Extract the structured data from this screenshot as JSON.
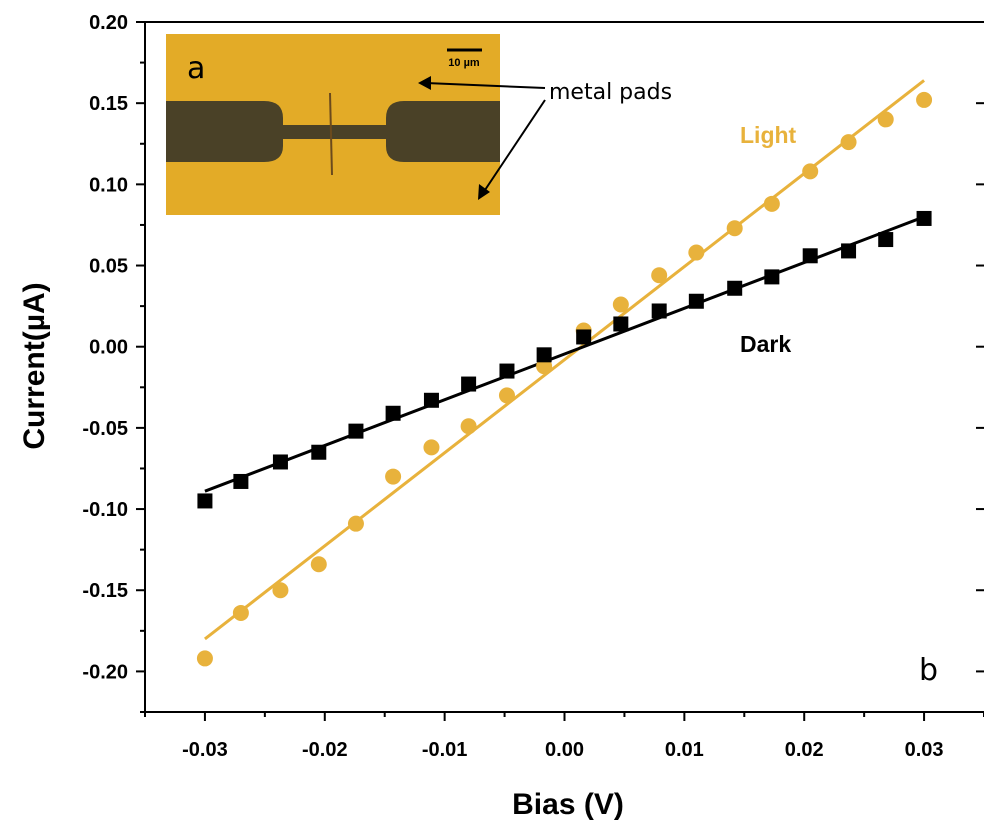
{
  "colors": {
    "light": "#e8b23c",
    "dark": "#000000",
    "inset_background": "#e3ab27",
    "inset_pad": "#4a4127"
  },
  "inset": {
    "panel_label": "a",
    "scale_bar_label": "10 µm",
    "annotation": "metal pads"
  },
  "panel_label": "b",
  "chart_data": {
    "type": "scatter",
    "xlabel": "Bias (V)",
    "ylabel": "Current(µA)",
    "xlim": [
      -0.035,
      0.035
    ],
    "ylim": [
      -0.225,
      0.2
    ],
    "x_ticks": [
      -0.03,
      -0.02,
      -0.01,
      0.0,
      0.01,
      0.02,
      0.03
    ],
    "x_tick_labels": [
      "-0.03",
      "-0.02",
      "-0.01",
      "0.00",
      "0.01",
      "0.02",
      "0.03"
    ],
    "y_ticks": [
      -0.2,
      -0.15,
      -0.1,
      -0.05,
      0.0,
      0.05,
      0.1,
      0.15,
      0.2
    ],
    "y_tick_labels": [
      "-0.20",
      "-0.15",
      "-0.10",
      "-0.05",
      "0.00",
      "0.05",
      "0.10",
      "0.15",
      "0.20"
    ],
    "grid": false,
    "series": [
      {
        "name": "Light",
        "marker": "circle",
        "x": [
          -0.03,
          -0.027,
          -0.0237,
          -0.0205,
          -0.0174,
          -0.0143,
          -0.0111,
          -0.008,
          -0.0048,
          -0.0017,
          0.0016,
          0.0047,
          0.0079,
          0.011,
          0.0142,
          0.0173,
          0.0205,
          0.0237,
          0.0268,
          0.03
        ],
        "y": [
          -0.192,
          -0.164,
          -0.15,
          -0.134,
          -0.109,
          -0.08,
          -0.062,
          -0.049,
          -0.03,
          -0.012,
          0.01,
          0.026,
          0.044,
          0.058,
          0.073,
          0.088,
          0.108,
          0.126,
          0.14,
          0.152
        ],
        "fit": [
          [
            -0.03,
            -0.18
          ],
          [
            0.03,
            0.164
          ]
        ]
      },
      {
        "name": "Dark",
        "marker": "square",
        "x": [
          -0.03,
          -0.027,
          -0.0237,
          -0.0205,
          -0.0174,
          -0.0143,
          -0.0111,
          -0.008,
          -0.0048,
          -0.0017,
          0.0016,
          0.0047,
          0.0079,
          0.011,
          0.0142,
          0.0173,
          0.0205,
          0.0237,
          0.0268,
          0.03
        ],
        "y": [
          -0.095,
          -0.083,
          -0.071,
          -0.065,
          -0.052,
          -0.041,
          -0.033,
          -0.023,
          -0.015,
          -0.005,
          0.006,
          0.014,
          0.022,
          0.028,
          0.036,
          0.043,
          0.056,
          0.059,
          0.066,
          0.079
        ],
        "fit": [
          [
            -0.03,
            -0.089
          ],
          [
            0.03,
            0.08
          ]
        ]
      }
    ]
  }
}
